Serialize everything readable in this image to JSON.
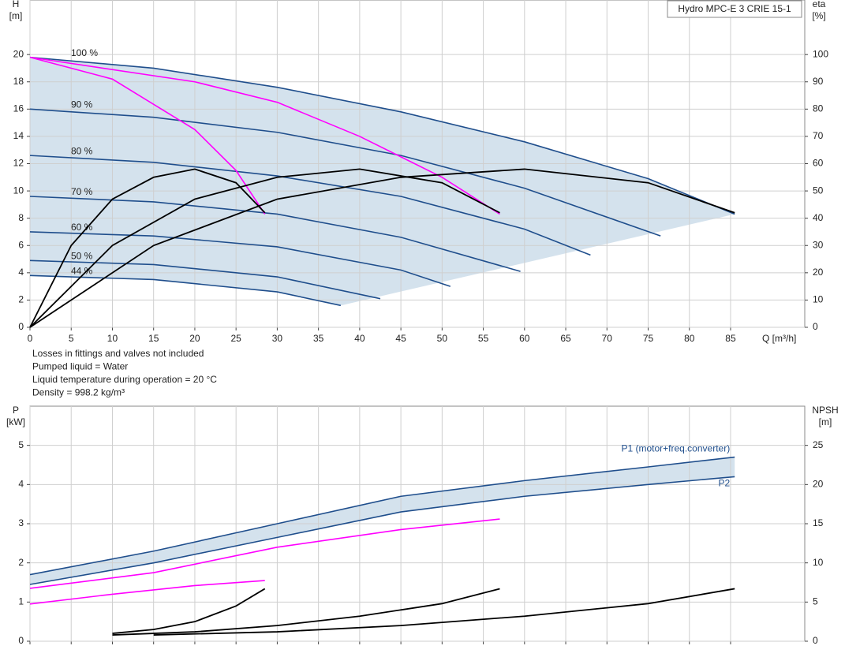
{
  "chart_data": [
    {
      "type": "line",
      "title": "Hydro MPC-E 3 CRIE 15-1",
      "ylabel": "H",
      "yunit": "[m]",
      "y2label": "eta",
      "y2unit": "[%]",
      "xlabel": "Q [m³/h]",
      "xlim": [
        0,
        94
      ],
      "xticks": [
        0,
        5,
        10,
        15,
        20,
        25,
        30,
        35,
        40,
        45,
        50,
        55,
        60,
        65,
        70,
        75,
        80,
        85
      ],
      "ylim": [
        0,
        24
      ],
      "yticks": [
        0,
        2,
        4,
        6,
        8,
        10,
        12,
        14,
        16,
        18,
        20
      ],
      "y2lim": [
        0,
        120
      ],
      "y2ticks": [
        0,
        10,
        20,
        30,
        40,
        50,
        60,
        70,
        80,
        90,
        100
      ],
      "grid": true,
      "series": [
        {
          "name": "100 %",
          "color": "#1f4e8c",
          "x": [
            0,
            15,
            30,
            45,
            60,
            75,
            85.5
          ],
          "values": [
            19.8,
            19.0,
            17.6,
            15.8,
            13.6,
            10.9,
            8.3
          ]
        },
        {
          "name": "90 %",
          "color": "#1f4e8c",
          "x": [
            0,
            15,
            30,
            45,
            60,
            76.5
          ],
          "values": [
            16.0,
            15.4,
            14.3,
            12.6,
            10.2,
            6.7
          ]
        },
        {
          "name": "80 %",
          "color": "#1f4e8c",
          "x": [
            0,
            15,
            30,
            45,
            60,
            68
          ],
          "values": [
            12.6,
            12.1,
            11.1,
            9.6,
            7.2,
            5.3
          ]
        },
        {
          "name": "70 %",
          "color": "#1f4e8c",
          "x": [
            0,
            15,
            30,
            45,
            59.5
          ],
          "values": [
            9.6,
            9.2,
            8.3,
            6.6,
            4.1
          ]
        },
        {
          "name": "60 %",
          "color": "#1f4e8c",
          "x": [
            0,
            15,
            30,
            45,
            51
          ],
          "values": [
            7.0,
            6.7,
            5.9,
            4.2,
            3.0
          ]
        },
        {
          "name": "50 %",
          "color": "#1f4e8c",
          "x": [
            0,
            15,
            30,
            42.5
          ],
          "values": [
            4.9,
            4.6,
            3.7,
            2.1
          ]
        },
        {
          "name": "44 %",
          "color": "#1f4e8c",
          "x": [
            0,
            15,
            30,
            37.7
          ],
          "values": [
            3.8,
            3.5,
            2.6,
            1.6
          ]
        },
        {
          "color": "#ff00ff",
          "x": [
            0,
            10,
            20,
            25,
            28.5
          ],
          "values": [
            19.8,
            18.2,
            14.5,
            11.5,
            8.3
          ]
        },
        {
          "color": "#ff00ff",
          "x": [
            0,
            20,
            30,
            40,
            50,
            57
          ],
          "values": [
            19.8,
            18.0,
            16.5,
            14.0,
            11.0,
            8.3
          ]
        },
        {
          "color": "#000000",
          "axis": "y2",
          "x": [
            0,
            5,
            10,
            15,
            20,
            25,
            28.5
          ],
          "values": [
            0,
            30,
            47,
            55,
            58,
            53,
            42
          ]
        },
        {
          "color": "#000000",
          "axis": "y2",
          "x": [
            0,
            10,
            20,
            30,
            40,
            50,
            57
          ],
          "values": [
            0,
            30,
            47,
            55,
            58,
            53,
            42
          ]
        },
        {
          "color": "#000000",
          "axis": "y2",
          "x": [
            0,
            15,
            30,
            45,
            60,
            75,
            85.5
          ],
          "values": [
            0,
            30,
            47,
            55,
            58,
            53,
            42
          ]
        }
      ]
    },
    {
      "type": "line",
      "notes": [
        "Losses in fittings and valves not included",
        "Pumped liquid = Water",
        "Liquid temperature during operation = 20 °C",
        "Density = 998.2 kg/m³"
      ],
      "ylabel": "P",
      "yunit": "[kW]",
      "y2label": "NPSH",
      "y2unit": "[m]",
      "xlim": [
        0,
        94
      ],
      "xticks": [
        0,
        5,
        10,
        15,
        20,
        25,
        30,
        35,
        40,
        45,
        50,
        55,
        60,
        65,
        70,
        75,
        80,
        85
      ],
      "ylim": [
        0,
        6
      ],
      "yticks": [
        0,
        1,
        2,
        3,
        4,
        5
      ],
      "y2lim": [
        0,
        30
      ],
      "y2ticks": [
        0,
        5,
        10,
        15,
        20,
        25
      ],
      "grid": true,
      "series": [
        {
          "name": "P1 (motor+freq.converter)",
          "color": "#1f4e8c",
          "x": [
            0,
            15,
            30,
            45,
            60,
            75,
            85.5
          ],
          "values": [
            1.7,
            2.3,
            3.0,
            3.7,
            4.1,
            4.45,
            4.7
          ]
        },
        {
          "name": "P2",
          "color": "#1f4e8c",
          "x": [
            0,
            15,
            30,
            45,
            60,
            75,
            85.5
          ],
          "values": [
            1.45,
            2.0,
            2.65,
            3.3,
            3.7,
            4.0,
            4.2
          ]
        },
        {
          "color": "#ff00ff",
          "x": [
            0,
            10,
            20,
            28.5
          ],
          "values": [
            0.95,
            1.2,
            1.42,
            1.55
          ]
        },
        {
          "color": "#ff00ff",
          "x": [
            0,
            15,
            30,
            45,
            57
          ],
          "values": [
            1.35,
            1.75,
            2.4,
            2.85,
            3.12
          ]
        },
        {
          "color": "#000000",
          "axis": "y2",
          "x": [
            10,
            15,
            20,
            25,
            28.5
          ],
          "values": [
            1,
            1.5,
            2.5,
            4.5,
            6.7
          ]
        },
        {
          "color": "#000000",
          "axis": "y2",
          "x": [
            10,
            20,
            30,
            40,
            50,
            57
          ],
          "values": [
            0.8,
            1.2,
            2,
            3.2,
            4.8,
            6.7
          ]
        },
        {
          "color": "#000000",
          "axis": "y2",
          "x": [
            15,
            30,
            45,
            60,
            75,
            85.5
          ],
          "values": [
            0.8,
            1.2,
            2,
            3.2,
            4.8,
            6.7
          ]
        }
      ]
    }
  ]
}
